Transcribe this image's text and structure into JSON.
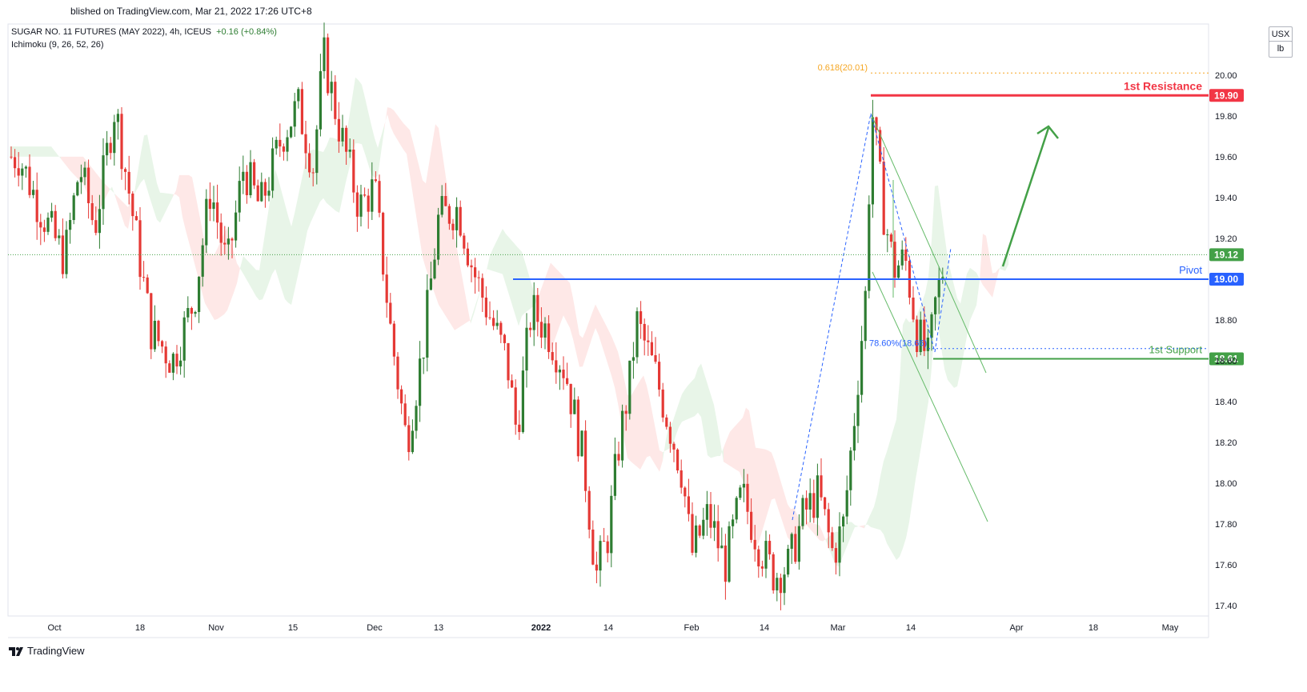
{
  "header": {
    "published": "blished on TradingView.com, Mar 21, 2022 17:26 UTC+8",
    "symbol": "SUGAR NO. 11 FUTURES (MAY 2022), 4h, ICEUS",
    "change": "+0.16 (+0.84%)",
    "indicator": "Ichimoku (9, 26, 52, 26)"
  },
  "units": {
    "currency": "USX",
    "measure": "lb"
  },
  "footer": {
    "brand": "TradingView"
  },
  "colors": {
    "up": "#2e7d32",
    "down": "#e53935",
    "resistance": "#f23645",
    "pivot": "#2962ff",
    "support": "#43a047",
    "fib": "#f5a623",
    "last_price": "#43a047"
  },
  "chart_data": {
    "type": "candlestick",
    "timeframe": "4h",
    "ylim": [
      17.35,
      20.25
    ],
    "y_ticks": [
      17.4,
      17.6,
      17.8,
      18.0,
      18.2,
      18.4,
      18.6,
      18.8,
      19.2,
      19.4,
      19.6,
      19.8,
      20.0
    ],
    "x_ticks": [
      {
        "date": "2021-10-01",
        "label": "Oct"
      },
      {
        "date": "2021-10-18",
        "label": "18"
      },
      {
        "date": "2021-11-01",
        "label": "Nov"
      },
      {
        "date": "2021-11-15",
        "label": "15"
      },
      {
        "date": "2021-12-01",
        "label": "Dec"
      },
      {
        "date": "2021-12-13",
        "label": "13"
      },
      {
        "date": "2022-01-03",
        "label": "2022"
      },
      {
        "date": "2022-01-14",
        "label": "14"
      },
      {
        "date": "2022-02-01",
        "label": "Feb"
      },
      {
        "date": "2022-02-14",
        "label": "14"
      },
      {
        "date": "2022-03-01",
        "label": "Mar"
      },
      {
        "date": "2022-03-14",
        "label": "14"
      },
      {
        "date": "2022-04-01",
        "label": "Apr"
      },
      {
        "date": "2022-04-18",
        "label": "18"
      },
      {
        "date": "2022-05-02",
        "label": "May"
      }
    ],
    "x_range": [
      "2021-09-24",
      "2022-05-09"
    ],
    "price_path": [
      [
        "2021-09-24",
        19.6
      ],
      [
        "2021-09-28",
        19.35
      ],
      [
        "2021-10-03",
        19.1
      ],
      [
        "2021-10-06",
        19.55
      ],
      [
        "2021-10-09",
        19.25
      ],
      [
        "2021-10-13",
        19.85
      ],
      [
        "2021-10-16",
        19.4
      ],
      [
        "2021-10-20",
        18.75
      ],
      [
        "2021-10-24",
        18.6
      ],
      [
        "2021-10-28",
        18.9
      ],
      [
        "2021-10-31",
        19.45
      ],
      [
        "2021-11-03",
        19.05
      ],
      [
        "2021-11-06",
        19.55
      ],
      [
        "2021-11-09",
        19.35
      ],
      [
        "2021-11-13",
        19.7
      ],
      [
        "2021-11-16",
        19.85
      ],
      [
        "2021-11-19",
        19.55
      ],
      [
        "2021-11-21",
        20.1
      ],
      [
        "2021-11-24",
        19.75
      ],
      [
        "2021-11-28",
        19.35
      ],
      [
        "2021-12-01",
        19.45
      ],
      [
        "2021-12-04",
        18.75
      ],
      [
        "2021-12-07",
        18.2
      ],
      [
        "2021-12-10",
        18.65
      ],
      [
        "2021-12-13",
        19.3
      ],
      [
        "2021-12-17",
        19.35
      ],
      [
        "2021-12-20",
        19.05
      ],
      [
        "2021-12-23",
        18.85
      ],
      [
        "2021-12-27",
        18.6
      ],
      [
        "2021-12-29",
        18.25
      ],
      [
        "2022-01-01",
        18.85
      ],
      [
        "2022-01-04",
        18.75
      ],
      [
        "2022-01-07",
        18.55
      ],
      [
        "2022-01-10",
        18.1
      ],
      [
        "2022-01-12",
        17.55
      ],
      [
        "2022-01-14",
        17.75
      ],
      [
        "2022-01-16",
        18.15
      ],
      [
        "2022-01-19",
        18.55
      ],
      [
        "2022-01-20",
        18.8
      ],
      [
        "2022-01-24",
        18.55
      ],
      [
        "2022-01-27",
        18.3
      ],
      [
        "2022-01-30",
        18.05
      ],
      [
        "2022-02-01",
        17.65
      ],
      [
        "2022-02-04",
        17.85
      ],
      [
        "2022-02-07",
        17.6
      ],
      [
        "2022-02-10",
        17.95
      ],
      [
        "2022-02-13",
        17.7
      ],
      [
        "2022-02-16",
        17.55
      ],
      [
        "2022-02-19",
        17.6
      ],
      [
        "2022-02-22",
        17.85
      ],
      [
        "2022-02-25",
        17.95
      ],
      [
        "2022-02-28",
        17.65
      ],
      [
        "2022-03-02",
        17.8
      ],
      [
        "2022-03-04",
        18.35
      ],
      [
        "2022-03-06",
        18.95
      ],
      [
        "2022-03-07",
        19.85
      ],
      [
        "2022-03-09",
        19.35
      ],
      [
        "2022-03-11",
        19.05
      ],
      [
        "2022-03-13",
        19.1
      ],
      [
        "2022-03-15",
        18.75
      ],
      [
        "2022-03-17",
        18.6
      ],
      [
        "2022-03-18",
        18.85
      ],
      [
        "2022-03-20",
        19.12
      ]
    ],
    "levels": [
      {
        "name": "1st Resistance",
        "value": 19.9,
        "label": "19.90"
      },
      {
        "name": "Pivot",
        "value": 19.0,
        "label": "19.00"
      },
      {
        "name": "1st Support",
        "value": 18.61,
        "label": "18.61"
      }
    ],
    "last_price": {
      "value": 19.12,
      "label": "19.12"
    },
    "annotations": {
      "fib_618": {
        "text": "0.618(20.01)",
        "value": 20.01
      },
      "fib_786": {
        "text": "78.60%(18.66)",
        "value": 18.66
      }
    }
  }
}
